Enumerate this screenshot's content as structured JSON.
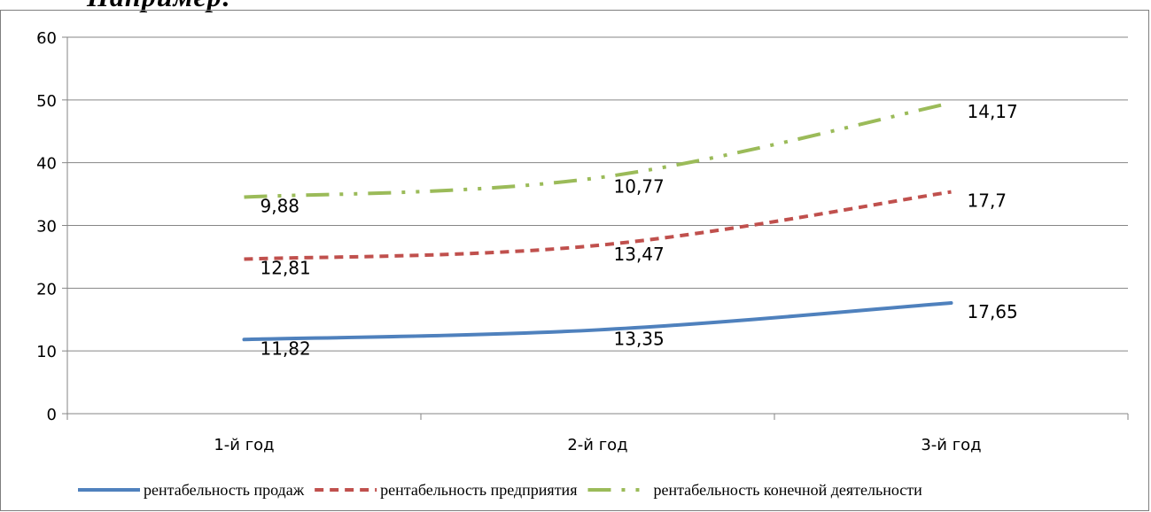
{
  "heading": "Например:",
  "chart_data": {
    "type": "line",
    "categories": [
      "1-й год",
      "2-й год",
      "3-й год"
    ],
    "ylim": [
      0,
      60
    ],
    "yticks": [
      0,
      10,
      20,
      30,
      40,
      50,
      60
    ],
    "grid": true,
    "legend_position": "bottom",
    "series": [
      {
        "name": "рентабельность продаж",
        "values": [
          11.82,
          13.35,
          17.65
        ],
        "labels": [
          "11,82",
          "13,35",
          "17,65"
        ],
        "color": "#4f81bd",
        "dash": "solid"
      },
      {
        "name": "рентабельность предприятия",
        "values": [
          24.63,
          26.82,
          35.35
        ],
        "labels": [
          "12,81",
          "13,47",
          "17,7"
        ],
        "color": "#c0504d",
        "dash": "dash"
      },
      {
        "name": "рентабельность конечной деятельности",
        "values": [
          34.51,
          37.59,
          49.52
        ],
        "labels": [
          "9,88",
          "10,77",
          "14,17"
        ],
        "color": "#9bbb59",
        "dash": "dash-dot-dot"
      }
    ]
  }
}
